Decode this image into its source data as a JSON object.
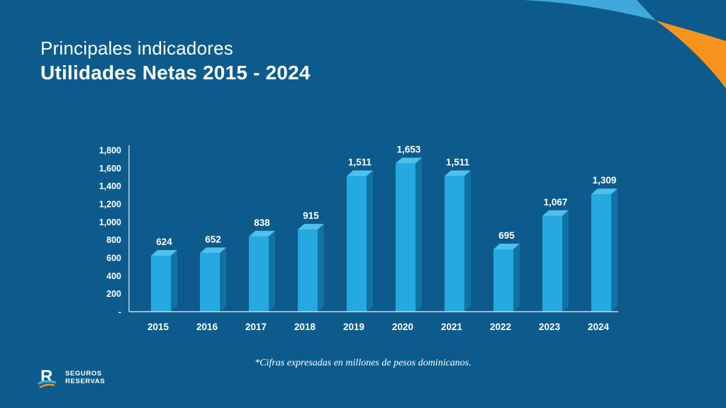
{
  "slide": {
    "title_line1": "Principales indicadores",
    "title_line2": "Utilidades Netas 2015 - 2024",
    "footnote": "*Cifras expresadas en millones de pesos dominicanos.",
    "logo": {
      "line1": "SEGUROS",
      "line2": "RESERVAS"
    }
  },
  "colors": {
    "background": "#0D5B8C",
    "bar_front": "#25A9E0",
    "bar_side": "#1173A3",
    "bar_top": "#4EC0EC",
    "axis_line": "#CDD9E2",
    "text": "#FFFFFF",
    "accent_blue": "#3FA9DC",
    "accent_orange": "#F7941E"
  },
  "chart_data": {
    "type": "bar",
    "title": "Utilidades Netas 2015 - 2024",
    "categories": [
      "2015",
      "2016",
      "2017",
      "2018",
      "2019",
      "2020",
      "2021",
      "2022",
      "2023",
      "2024"
    ],
    "values": [
      624,
      652,
      838,
      915,
      1511,
      1653,
      1511,
      695,
      1067,
      1309
    ],
    "value_labels": [
      "624",
      "652",
      "838",
      "915",
      "1,511",
      "1,653",
      "1,511",
      "695",
      "1,067",
      "1,309"
    ],
    "xlabel": "",
    "ylabel": "",
    "ylim": [
      0,
      1800
    ],
    "y_axis": {
      "values": [
        1800,
        1600,
        1400,
        1200,
        1000,
        800,
        600,
        400,
        200,
        0
      ],
      "labels": [
        "1,800",
        "1,600",
        "1,400",
        "1,200",
        "1,000",
        "800",
        "600",
        "400",
        "200",
        "-"
      ]
    },
    "grid": false,
    "legend": false,
    "style": "3d-extruded-bars",
    "unit_note": "millones de pesos dominicanos"
  }
}
